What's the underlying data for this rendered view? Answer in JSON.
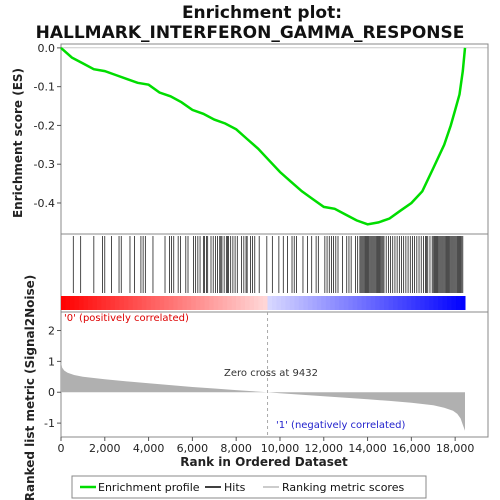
{
  "chart_data": {
    "type": "line",
    "title_lines": [
      "Enrichment plot:",
      "HALLMARK_INTERFERON_GAMMA_RESPONSE"
    ],
    "top_panel": {
      "ylabel": "Enrichment score (ES)",
      "ylim": [
        -0.48,
        0.01
      ],
      "yticks": [
        0.0,
        -0.1,
        -0.2,
        -0.3,
        -0.4
      ],
      "ytick_labels": [
        "0.0",
        "-0.1",
        "-0.2",
        "-0.3",
        "-0.4"
      ],
      "series": [
        {
          "name": "Enrichment profile",
          "color": "#00dd00",
          "x": [
            0,
            500,
            1000,
            1500,
            2000,
            2500,
            3000,
            3500,
            4000,
            4500,
            5000,
            5500,
            6000,
            6500,
            7000,
            7500,
            8000,
            8500,
            9000,
            9500,
            10000,
            10500,
            11000,
            11500,
            12000,
            12500,
            13000,
            13500,
            14000,
            14500,
            15000,
            15500,
            16000,
            16500,
            17000,
            17500,
            17800,
            18000,
            18200,
            18350,
            18450
          ],
          "y": [
            0.0,
            -0.025,
            -0.04,
            -0.055,
            -0.06,
            -0.07,
            -0.08,
            -0.09,
            -0.095,
            -0.115,
            -0.125,
            -0.14,
            -0.16,
            -0.17,
            -0.185,
            -0.195,
            -0.21,
            -0.235,
            -0.26,
            -0.29,
            -0.32,
            -0.345,
            -0.37,
            -0.39,
            -0.41,
            -0.415,
            -0.43,
            -0.445,
            -0.455,
            -0.45,
            -0.44,
            -0.42,
            -0.4,
            -0.37,
            -0.31,
            -0.25,
            -0.2,
            -0.16,
            -0.12,
            -0.06,
            0.0
          ]
        }
      ]
    },
    "hits_panel": {
      "legend_name": "Hits",
      "hit_ranks": [
        560,
        900,
        1500,
        1900,
        2000,
        2300,
        2650,
        2750,
        3150,
        3350,
        3650,
        3750,
        3850,
        4200,
        4750,
        4950,
        5050,
        5150,
        5350,
        5450,
        5700,
        5800,
        6050,
        6150,
        6250,
        6350,
        6500,
        6550,
        6650,
        6700,
        6850,
        6950,
        7050,
        7150,
        7250,
        7300,
        7350,
        7450,
        7550,
        7600,
        7650,
        7750,
        7850,
        7950,
        8050,
        8250,
        8350,
        8450,
        8500,
        8650,
        8750,
        8850,
        9050,
        9400,
        9650,
        9950,
        10150,
        10350,
        10550,
        10650,
        10750,
        11050,
        11250,
        11450,
        11650,
        11750,
        12050,
        12150,
        12250,
        12350,
        12450,
        12550,
        12650,
        12850,
        13050,
        13150,
        13250,
        13450,
        13550,
        13650,
        13700,
        13750,
        13800,
        13850,
        13900,
        13950,
        14000,
        14050,
        14100,
        14150,
        14200,
        14250,
        14300,
        14350,
        14400,
        14450,
        14500,
        14550,
        14600,
        14650,
        14700,
        14750,
        14850,
        14950,
        15050,
        15150,
        15250,
        15350,
        15450,
        15550,
        15650,
        15750,
        15850,
        15950,
        16050,
        16150,
        16250,
        16350,
        16450,
        16550,
        16650,
        16700,
        16750,
        16850,
        16950,
        17000,
        17050,
        17100,
        17150,
        17200,
        17250,
        17300,
        17350,
        17400,
        17450,
        17500,
        17550,
        17600,
        17650,
        17700,
        17750,
        17800,
        17850,
        17900,
        17950,
        18000,
        18050,
        18100,
        18150,
        18200,
        18250,
        18300,
        18350
      ]
    },
    "colorbar": {
      "positive_color": "#ff0000",
      "negative_color": "#0000ff",
      "zero_rank": 9432
    },
    "bottom_panel": {
      "ylabel": "Ranked list metric (Signal2Noise)",
      "xlabel": "Rank in Ordered Dataset",
      "ylim": [
        -1.45,
        2.6
      ],
      "yticks": [
        2,
        1,
        0,
        -1
      ],
      "ytick_labels": [
        "2",
        "1",
        "0",
        "-1"
      ],
      "legend_name": "Ranking metric scores",
      "fill_color": "#b0b0b0",
      "metric_curve": {
        "x": [
          0,
          50,
          150,
          300,
          600,
          1000,
          2000,
          3000,
          4000,
          5000,
          6000,
          7000,
          8000,
          9000,
          9432,
          10000,
          11000,
          12000,
          13000,
          14000,
          15000,
          16000,
          17000,
          17500,
          17900,
          18100,
          18250,
          18350,
          18450
        ],
        "y": [
          1.0,
          0.8,
          0.7,
          0.63,
          0.56,
          0.5,
          0.42,
          0.35,
          0.29,
          0.23,
          0.17,
          0.12,
          0.07,
          0.02,
          0.0,
          -0.03,
          -0.08,
          -0.13,
          -0.18,
          -0.23,
          -0.28,
          -0.34,
          -0.42,
          -0.5,
          -0.6,
          -0.7,
          -0.85,
          -1.05,
          -1.25
        ]
      },
      "annotations": {
        "pos_label": "'0' (positively correlated)",
        "neg_label": "'1' (negatively correlated)",
        "zero_cross": "Zero cross at 9432"
      }
    },
    "x_axis": {
      "xlim": [
        0,
        19500
      ],
      "xticks": [
        0,
        2000,
        4000,
        6000,
        8000,
        10000,
        12000,
        14000,
        16000,
        18000
      ],
      "xtick_labels": [
        "0",
        "2,000",
        "4,000",
        "6,000",
        "8,000",
        "10,000",
        "12,000",
        "14,000",
        "16,000",
        "18,000"
      ],
      "n_genes": 18450
    },
    "legend": {
      "placement": "bottom",
      "items": [
        "Enrichment profile",
        "Hits",
        "Ranking metric scores"
      ]
    }
  }
}
